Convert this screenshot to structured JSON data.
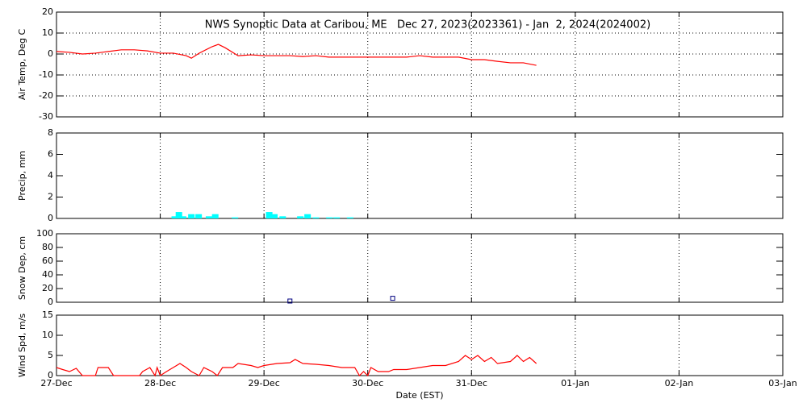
{
  "chart_data": [
    {
      "type": "line",
      "title": "NWS Synoptic Data at Caribou, ME   Dec 27, 2023(2023361) - Jan  2, 2024(2024002)",
      "y_label": "Air Temp, Deg C",
      "ylim": [
        -30,
        20
      ],
      "yticks": [
        -30,
        -20,
        -10,
        0,
        10,
        20
      ],
      "grid": true,
      "series": [
        {
          "name": "Air Temp",
          "color": "#ff0000",
          "x": [
            0,
            0.125,
            0.25,
            0.375,
            0.5,
            0.625,
            0.75,
            0.875,
            1.0,
            1.125,
            1.25,
            1.3,
            1.375,
            1.5,
            1.56,
            1.625,
            1.75,
            1.875,
            2.0,
            2.125,
            2.25,
            2.375,
            2.5,
            2.625,
            2.75,
            2.875,
            3.0,
            3.125,
            3.25,
            3.375,
            3.5,
            3.625,
            3.75,
            3.875,
            4.0,
            4.125,
            4.25,
            4.375,
            4.5,
            4.625
          ],
          "values": [
            1.2,
            0.8,
            0,
            0.4,
            1.2,
            2,
            2,
            1.5,
            0.4,
            0.4,
            -0.8,
            -2,
            0.4,
            3.5,
            4.6,
            3,
            -0.8,
            -0.4,
            -0.8,
            -0.8,
            -0.8,
            -1.2,
            -0.8,
            -1.5,
            -1.5,
            -1.5,
            -1.5,
            -1.5,
            -1.5,
            -1.5,
            -0.8,
            -1.5,
            -1.5,
            -1.5,
            -2.7,
            -2.7,
            -3.5,
            -4.2,
            -4.2,
            -5.4
          ]
        }
      ]
    },
    {
      "type": "bar",
      "y_label": "Precip, mm",
      "ylim": [
        0,
        8
      ],
      "yticks": [
        0,
        2,
        4,
        6,
        8
      ],
      "grid": true,
      "series": [
        {
          "name": "Precip",
          "color": "#00ffff",
          "x": [
            1.14,
            1.18,
            1.22,
            1.3,
            1.37,
            1.47,
            1.53,
            1.72,
            2.05,
            2.1,
            2.18,
            2.35,
            2.42,
            2.5,
            2.63,
            2.7,
            2.83
          ],
          "values": [
            0.2,
            0.6,
            0.2,
            0.4,
            0.4,
            0.2,
            0.4,
            0.1,
            0.6,
            0.4,
            0.2,
            0.2,
            0.4,
            0.1,
            0.1,
            0.1,
            0.1
          ]
        }
      ]
    },
    {
      "type": "scatter",
      "y_label": "Snow Dep, cm",
      "ylim": [
        0,
        100
      ],
      "yticks": [
        0,
        20,
        40,
        60,
        80,
        100
      ],
      "grid": true,
      "series": [
        {
          "name": "Snow Depth",
          "color": "#000080",
          "x": [
            2.25,
            3.24
          ],
          "values": [
            0,
            4
          ]
        }
      ]
    },
    {
      "type": "line",
      "y_label": "Wind Spd, m/s",
      "x_label": "Date (EST)",
      "ylim": [
        0,
        15
      ],
      "yticks": [
        0,
        5,
        10,
        15
      ],
      "grid": true,
      "xlim": [
        0,
        7
      ],
      "xticks": [
        {
          "value": 0,
          "label": "27-Dec"
        },
        {
          "value": 1,
          "label": "28-Dec"
        },
        {
          "value": 2,
          "label": "29-Dec"
        },
        {
          "value": 3,
          "label": "30-Dec"
        },
        {
          "value": 4,
          "label": "31-Dec"
        },
        {
          "value": 5,
          "label": "01-Jan"
        },
        {
          "value": 6,
          "label": "02-Jan"
        },
        {
          "value": 7,
          "label": "03-Jan"
        }
      ],
      "series": [
        {
          "name": "Wind Speed",
          "color": "#ff0000",
          "x": [
            0,
            0.06,
            0.125,
            0.19,
            0.25,
            0.375,
            0.4,
            0.5,
            0.55,
            0.75,
            0.8,
            0.83,
            0.9,
            0.95,
            0.97,
            1.0,
            1.06,
            1.125,
            1.19,
            1.25,
            1.3,
            1.375,
            1.42,
            1.5,
            1.55,
            1.6,
            1.7,
            1.75,
            1.875,
            1.94,
            2.0,
            2.125,
            2.25,
            2.3,
            2.375,
            2.5,
            2.625,
            2.75,
            2.875,
            2.92,
            2.96,
            3.0,
            3.03,
            3.1,
            3.2,
            3.25,
            3.375,
            3.5,
            3.625,
            3.75,
            3.875,
            3.94,
            4.0,
            4.06,
            4.125,
            4.19,
            4.25,
            4.375,
            4.44,
            4.5,
            4.56,
            4.625
          ],
          "values": [
            2,
            1.5,
            1,
            1.8,
            0,
            0,
            2,
            2,
            0,
            0,
            0,
            1,
            2,
            0,
            2,
            0,
            1,
            2,
            3,
            2,
            1,
            0,
            2,
            1,
            0,
            2,
            2,
            3,
            2.5,
            2,
            2.5,
            3,
            3.2,
            4,
            3,
            2.8,
            2.5,
            2,
            2,
            0,
            1,
            0,
            2,
            1,
            1,
            1.5,
            1.5,
            2,
            2.5,
            2.5,
            3.5,
            5,
            4,
            5,
            3.5,
            4.5,
            3,
            3.5,
            5,
            3.5,
            4.5,
            3
          ]
        }
      ]
    }
  ]
}
